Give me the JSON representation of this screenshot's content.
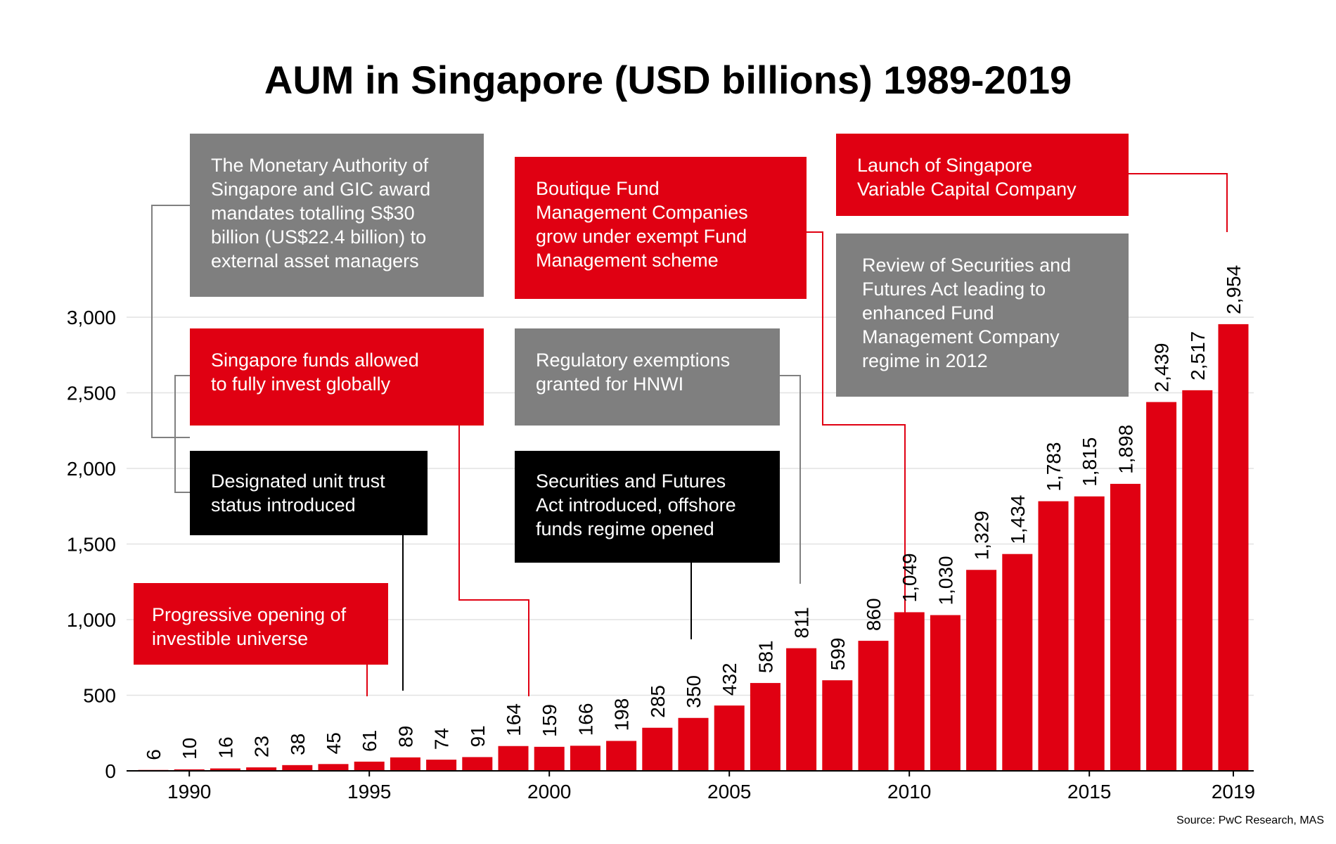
{
  "chart_data": {
    "type": "bar",
    "title": "AUM in Singapore (USD billions) 1989-2019",
    "years": [
      1989,
      1990,
      1991,
      1992,
      1993,
      1994,
      1995,
      1996,
      1997,
      1998,
      1999,
      2000,
      2001,
      2002,
      2003,
      2004,
      2005,
      2006,
      2007,
      2008,
      2009,
      2010,
      2011,
      2012,
      2013,
      2014,
      2015,
      2016,
      2017,
      2018,
      2019
    ],
    "values": [
      6,
      10,
      16,
      23,
      38,
      45,
      61,
      89,
      74,
      91,
      164,
      159,
      166,
      198,
      285,
      350,
      432,
      581,
      811,
      599,
      860,
      1049,
      1030,
      1329,
      1434,
      1783,
      1815,
      1898,
      2439,
      2517,
      2954
    ],
    "value_labels": [
      "6",
      "10",
      "16",
      "23",
      "38",
      "45",
      "61",
      "89",
      "74",
      "91",
      "164",
      "159",
      "166",
      "198",
      "285",
      "350",
      "432",
      "581",
      "811",
      "599",
      "860",
      "1,049",
      "1,030",
      "1,329",
      "1,434",
      "1,783",
      "1,815",
      "1,898",
      "2,439",
      "2,517",
      "2,954"
    ],
    "x_tick_labels": [
      "1990",
      "1995",
      "2000",
      "2005",
      "2010",
      "2015",
      "2019"
    ],
    "y_ticks": [
      0,
      500,
      1000,
      1500,
      2000,
      2500,
      3000
    ],
    "y_tick_labels": [
      "0",
      "500",
      "1,000",
      "1,500",
      "2,000",
      "2,500",
      "3,000"
    ],
    "ylim": [
      0,
      3000
    ],
    "grid": true,
    "bar_color": "#e00012",
    "source": "Source: PwC Research, MAS"
  },
  "annotations": {
    "mas_gic": "The Monetary Authority of\nSingapore and GIC award\nmandates totalling S$30\nbillion (US$22.4 billion) to\nexternal asset managers",
    "funds_global": "Singapore funds allowed\nto fully invest globally",
    "unit_trust": "Designated unit trust\nstatus introduced",
    "progressive": "Progressive opening of\ninvestible universe",
    "boutique": "Boutique Fund\nManagement Companies\ngrow under exempt Fund\nManagement scheme",
    "hnwi": "Regulatory exemptions\ngranted for HNWI",
    "sfa": "Securities and Futures\nAct introduced, offshore\nfunds regime opened",
    "vcc": "Launch of Singapore\nVariable Capital Company",
    "sfa_review": "Review of Securities and\nFutures Act leading to\nenhanced Fund\nManagement Company\nregime in 2012"
  },
  "colors": {
    "red": "#e00012",
    "grey": "#7f7f7f",
    "black": "#000000",
    "connector_grey": "#808080"
  }
}
